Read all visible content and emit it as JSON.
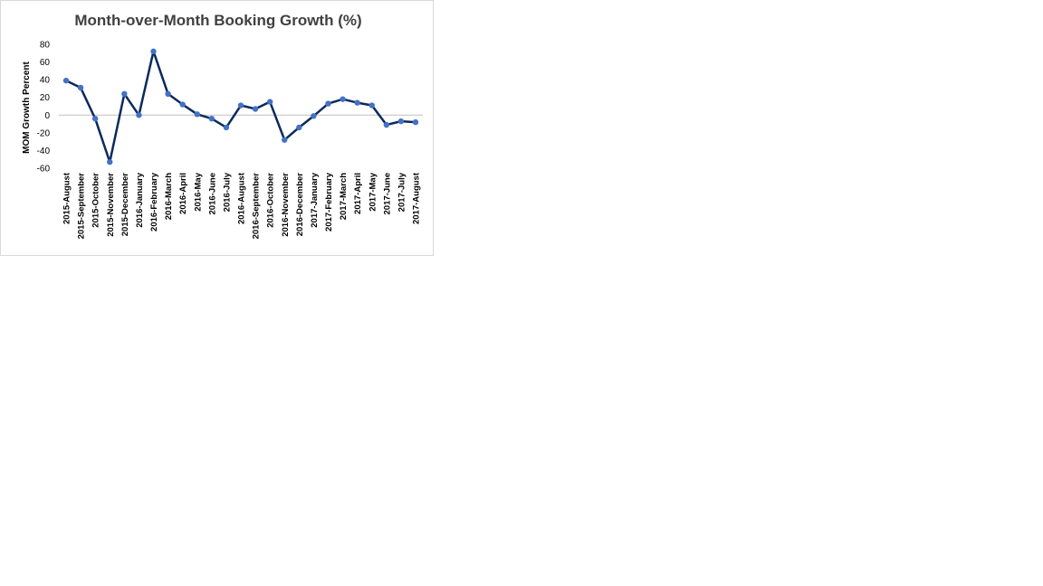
{
  "chart_data": {
    "type": "line",
    "title": "Month-over-Month Booking Growth (%)",
    "xlabel": "",
    "ylabel": "MOM Growth Percent",
    "ylim": [
      -60,
      80
    ],
    "yticks": [
      80,
      60,
      40,
      20,
      0,
      -20,
      -40,
      -60
    ],
    "grid": false,
    "legend": "none",
    "categories": [
      "2015-August",
      "2015-September",
      "2015-October",
      "2015-November",
      "2015-December",
      "2016-January",
      "2016-February",
      "2016-March",
      "2016-April",
      "2016-May",
      "2016-June",
      "2016-July",
      "2016-August",
      "2016-September",
      "2016-October",
      "2016-November",
      "2016-December",
      "2017-January",
      "2017-February",
      "2017-March",
      "2017-April",
      "2017-May",
      "2017-June",
      "2017-July",
      "2017-August"
    ],
    "series": [
      {
        "values": [
          39,
          31,
          -4,
          -53,
          24,
          0,
          72,
          24,
          12,
          1,
          -4,
          -14,
          11,
          7,
          15,
          -28,
          -14,
          -1,
          13,
          18,
          14,
          11,
          -11,
          -7,
          -8
        ],
        "line_color": "#0b2a5b",
        "marker_color": "#4472c4"
      }
    ]
  }
}
